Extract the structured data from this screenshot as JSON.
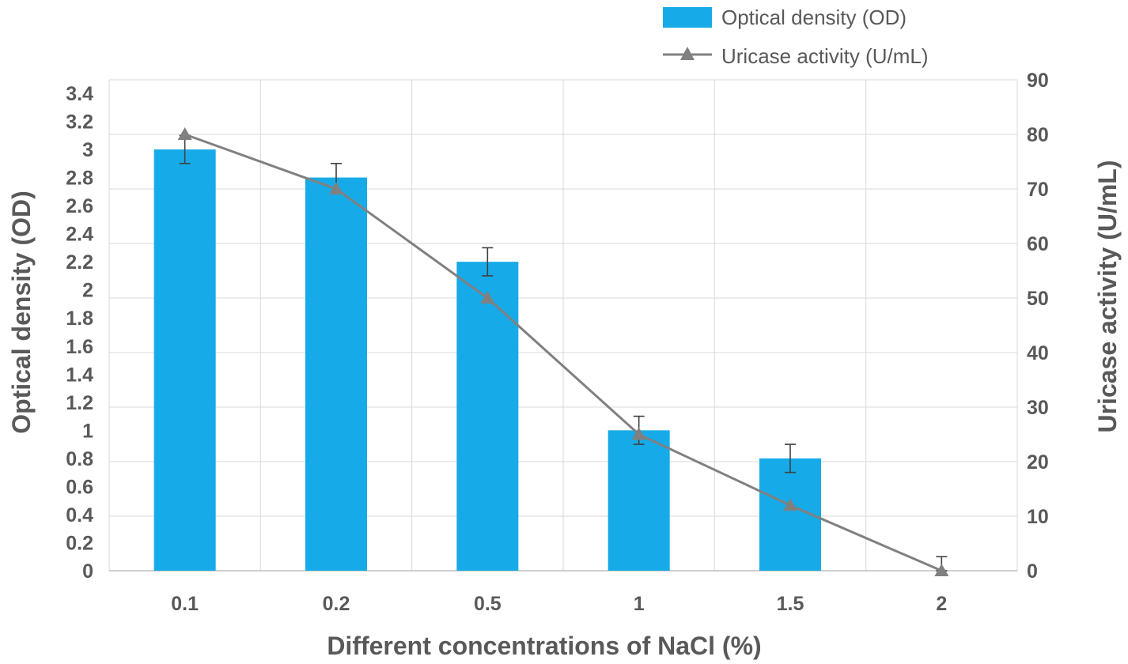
{
  "chart_data": {
    "type": "bar",
    "title": "",
    "xlabel": "Different concentrations of NaCl (%)",
    "ylabel_left": "Optical density (OD)",
    "ylabel_right": "Uricase activity (U/mL)",
    "categories": [
      "0.1",
      "0.2",
      "0.5",
      "1",
      "1.5",
      "2"
    ],
    "ylim_left": [
      0,
      3.4
    ],
    "yticks_left": [
      "0",
      "0.2",
      "0.4",
      "0.6",
      "0.8",
      "1",
      "1.2",
      "1.4",
      "1.6",
      "1.8",
      "2",
      "2.2",
      "2.4",
      "2.6",
      "2.8",
      "3",
      "3.2",
      "3.4"
    ],
    "ylim_right": [
      0,
      90
    ],
    "yticks_right": [
      "0",
      "10",
      "20",
      "30",
      "40",
      "50",
      "60",
      "70",
      "80",
      "90"
    ],
    "grid": true,
    "legend_position": "top-right",
    "series": [
      {
        "name": "Optical density (OD)",
        "kind": "bar",
        "axis": "left",
        "color": "#16abe8",
        "values": [
          3.0,
          2.8,
          2.2,
          1.0,
          0.8,
          0.0
        ],
        "errors": [
          0.1,
          0.1,
          0.1,
          0.1,
          0.1,
          0.1
        ]
      },
      {
        "name": "Uricase activity (U/mL)",
        "kind": "line",
        "axis": "right",
        "marker": "triangle",
        "color": "#808080",
        "values": [
          80,
          70,
          50,
          25,
          12,
          0
        ]
      }
    ]
  }
}
